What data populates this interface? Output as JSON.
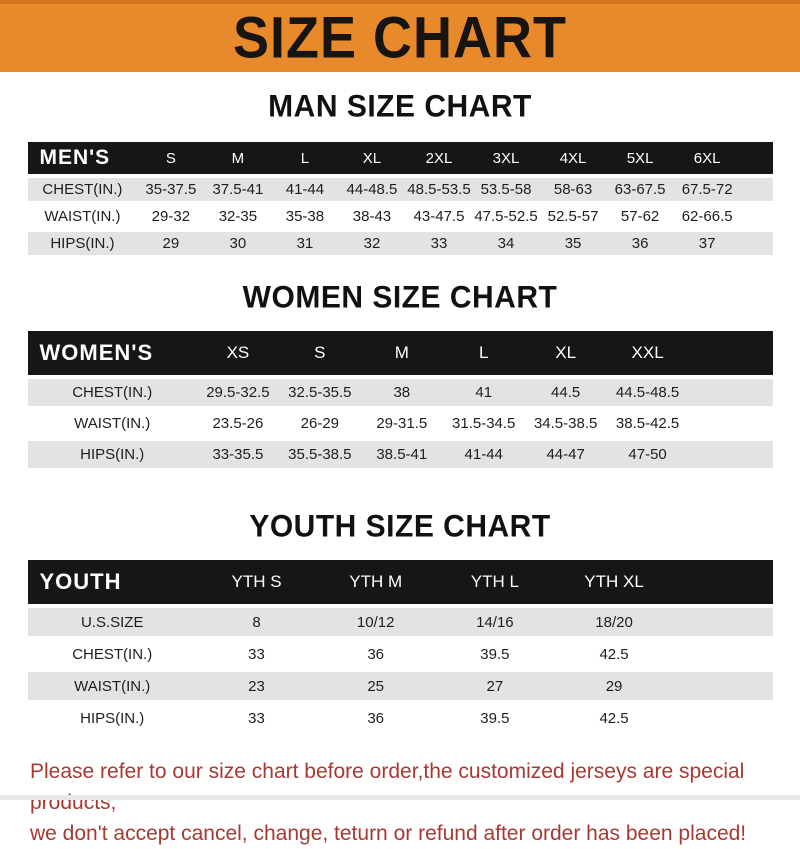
{
  "banner": {
    "title": "SIZE CHART"
  },
  "colors": {
    "banner_bg": "#e8892b",
    "table_header_bg": "#161616",
    "table_header_text": "#ffffff",
    "row_alt_bg": "#e3e3e3",
    "footer_text": "#a63a33"
  },
  "sections": [
    {
      "id": "men",
      "heading": "MAN SIZE CHART",
      "corner_label": "MEN'S",
      "columns": [
        "S",
        "M",
        "L",
        "XL",
        "2XL",
        "3XL",
        "4XL",
        "5XL",
        "6XL"
      ],
      "rows": [
        {
          "label": "CHEST(IN.)",
          "values": [
            "35-37.5",
            "37.5-41",
            "41-44",
            "44-48.5",
            "48.5-53.5",
            "53.5-58",
            "58-63",
            "63-67.5",
            "67.5-72"
          ]
        },
        {
          "label": "WAIST(IN.)",
          "values": [
            "29-32",
            "32-35",
            "35-38",
            "38-43",
            "43-47.5",
            "47.5-52.5",
            "52.5-57",
            "57-62",
            "62-66.5"
          ]
        },
        {
          "label": "HIPS(IN.)",
          "values": [
            "29",
            "30",
            "31",
            "32",
            "33",
            "34",
            "35",
            "36",
            "37"
          ]
        }
      ]
    },
    {
      "id": "women",
      "heading": "WOMEN SIZE CHART",
      "corner_label": "WOMEN'S",
      "columns": [
        "XS",
        "S",
        "M",
        "L",
        "XL",
        "XXL"
      ],
      "rows": [
        {
          "label": "CHEST(IN.)",
          "values": [
            "29.5-32.5",
            "32.5-35.5",
            "38",
            "41",
            "44.5",
            "44.5-48.5"
          ]
        },
        {
          "label": "WAIST(IN.)",
          "values": [
            "23.5-26",
            "26-29",
            "29-31.5",
            "31.5-34.5",
            "34.5-38.5",
            "38.5-42.5"
          ]
        },
        {
          "label": "HIPS(IN.)",
          "values": [
            "33-35.5",
            "35.5-38.5",
            "38.5-41",
            "41-44",
            "44-47",
            "47-50"
          ]
        }
      ]
    },
    {
      "id": "youth",
      "heading": "YOUTH SIZE CHART",
      "corner_label": "YOUTH",
      "columns": [
        "YTH S",
        "YTH M",
        "YTH L",
        "YTH XL"
      ],
      "rows": [
        {
          "label": "U.S.SIZE",
          "values": [
            "8",
            "10/12",
            "14/16",
            "18/20"
          ]
        },
        {
          "label": "CHEST(IN.)",
          "values": [
            "33",
            "36",
            "39.5",
            "42.5"
          ]
        },
        {
          "label": "WAIST(IN.)",
          "values": [
            "23",
            "25",
            "27",
            "29"
          ]
        },
        {
          "label": "HIPS(IN.)",
          "values": [
            "33",
            "36",
            "39.5",
            "42.5"
          ]
        }
      ]
    }
  ],
  "footer": {
    "line1": "Please refer to our size chart before order,the customized jerseys are special products,",
    "line2": "we don't accept cancel, change, teturn or refund after order has been placed!"
  }
}
